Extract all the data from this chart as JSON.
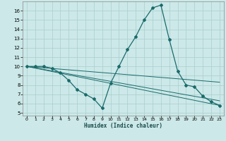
{
  "xlabel": "Humidex (Indice chaleur)",
  "background_color": "#cce8e8",
  "grid_color": "#aacece",
  "line_color": "#1a6b6b",
  "xlim": [
    -0.5,
    23.5
  ],
  "ylim": [
    4.7,
    17.0
  ],
  "yticks": [
    5,
    6,
    7,
    8,
    9,
    10,
    11,
    12,
    13,
    14,
    15,
    16
  ],
  "xticks": [
    0,
    1,
    2,
    3,
    4,
    5,
    6,
    7,
    8,
    9,
    10,
    11,
    12,
    13,
    14,
    15,
    16,
    17,
    18,
    19,
    20,
    21,
    22,
    23
  ],
  "main_series": {
    "x": [
      0,
      1,
      2,
      3,
      4,
      5,
      6,
      7,
      8,
      9,
      10,
      11,
      12,
      13,
      14,
      15,
      16,
      17,
      18,
      19,
      20,
      21,
      22,
      23
    ],
    "y": [
      10,
      10,
      10,
      9.8,
      9.3,
      8.5,
      7.5,
      7.0,
      6.5,
      5.5,
      8.2,
      10.0,
      11.8,
      13.2,
      15.0,
      16.3,
      16.6,
      12.9,
      9.5,
      8.0,
      7.8,
      6.8,
      6.2,
      5.8
    ]
  },
  "straight_lines": [
    {
      "x": [
        0,
        23
      ],
      "y": [
        10,
        5.8
      ]
    },
    {
      "x": [
        0,
        23
      ],
      "y": [
        10,
        6.3
      ]
    },
    {
      "x": [
        0,
        23
      ],
      "y": [
        10,
        8.3
      ]
    }
  ]
}
